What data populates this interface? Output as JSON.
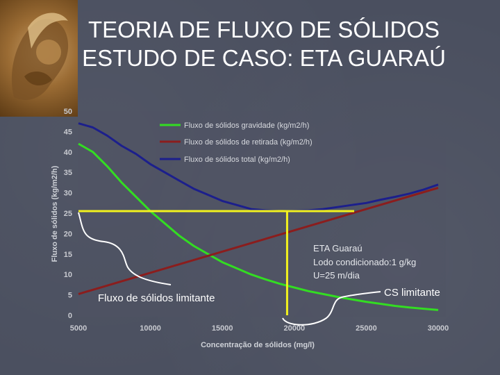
{
  "title": {
    "line1": "TEORIA DE FLUXO DE SÓLIDOS",
    "line2": "ESTUDO DE CASO: ETA GUARAÚ"
  },
  "colors": {
    "background": "#4a4f5f",
    "gravidade": "#33dd22",
    "retirada": "#8b1d1d",
    "total": "#1c1f8c",
    "limit_lines": "#f2f21e",
    "callout": "#ffffff"
  },
  "chart_data": {
    "type": "line",
    "xlabel": "Concentração de sólidos (mg/l)",
    "ylabel": "Fluxo de sólidos (kg/m2/h)",
    "xlim": [
      5000,
      30000
    ],
    "ylim": [
      0,
      50
    ],
    "x_ticks": [
      "5000",
      "10000",
      "15000",
      "20000",
      "25000",
      "30000"
    ],
    "y_ticks": [
      "0",
      "5",
      "10",
      "15",
      "20",
      "25",
      "30",
      "35",
      "40",
      "45",
      "50"
    ],
    "series": [
      {
        "name": "Fluxo de sólidos gravidade (kg/m2/h)",
        "x": [
          5000,
          6000,
          7000,
          8000,
          9000,
          10000,
          11000,
          12000,
          13000,
          14000,
          15000,
          16000,
          17000,
          18000,
          19000,
          20000,
          21000,
          22000,
          23000,
          24000,
          25000,
          26000,
          27000,
          28000,
          29000,
          30000
        ],
        "values": [
          42,
          40,
          36.5,
          32.5,
          29,
          25.5,
          22.5,
          19.5,
          17,
          15,
          13,
          11.5,
          10,
          8.8,
          7.7,
          6.8,
          5.9,
          5.2,
          4.5,
          3.9,
          3.3,
          2.8,
          2.3,
          1.9,
          1.6,
          1.3
        ]
      },
      {
        "name": "Fluxo de sólidos de retirada (kg/m2/h)",
        "x": [
          5000,
          10000,
          15000,
          20000,
          25000,
          30000
        ],
        "values": [
          5.2,
          10.4,
          15.6,
          20.8,
          26,
          31.2
        ]
      },
      {
        "name": "Fluxo de sólidos total (kg/m2/h)",
        "x": [
          5000,
          6000,
          7000,
          8000,
          9000,
          10000,
          11000,
          12000,
          13000,
          14000,
          15000,
          16000,
          17000,
          18000,
          19000,
          20000,
          21000,
          22000,
          23000,
          24000,
          25000,
          26000,
          27000,
          28000,
          29000,
          30000
        ],
        "values": [
          47,
          46,
          44,
          41.5,
          39.5,
          37,
          35,
          33,
          31,
          29.5,
          28,
          27,
          26,
          25.7,
          25.5,
          25.6,
          25.7,
          26,
          26.5,
          27,
          27.5,
          28.3,
          29,
          29.8,
          30.8,
          32
        ]
      }
    ],
    "limit_lines": {
      "flux": 25.5,
      "concentration": 19500
    },
    "legend": {
      "placement": "top-right"
    },
    "note": [
      "ETA Guaraú",
      "Lodo condicionado:1 g/kg",
      "U=25 m/dia"
    ],
    "callouts": {
      "flux_label": "Fluxo de sólidos limitante",
      "cs_label": "CS limitante"
    }
  }
}
